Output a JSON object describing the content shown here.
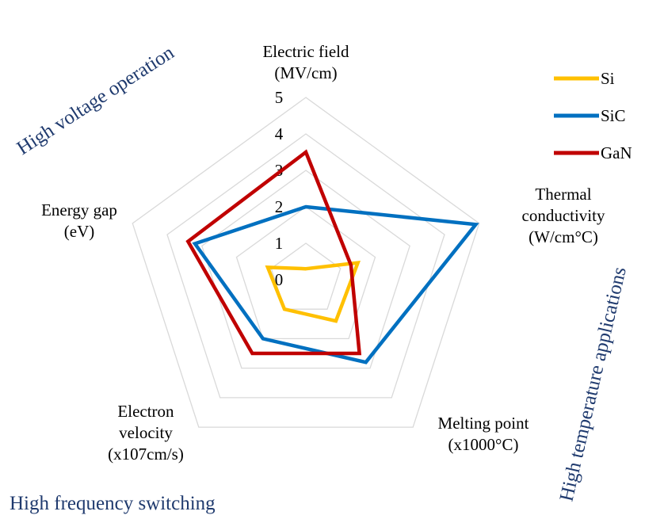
{
  "chart_data": {
    "type": "radar",
    "axes": [
      {
        "lines": [
          "Electric field",
          "(MV/cm)"
        ]
      },
      {
        "lines": [
          "Thermal",
          "conductivity",
          "(W/cm°C)"
        ]
      },
      {
        "lines": [
          "Melting point",
          "(x1000°C)"
        ]
      },
      {
        "lines": [
          "Electron",
          "velocity",
          "(x107cm/s)"
        ]
      },
      {
        "lines": [
          "Energy gap",
          "(eV)"
        ]
      }
    ],
    "rlim": [
      0,
      5
    ],
    "ticks": [
      "0",
      "1",
      "2",
      "3",
      "4",
      "5"
    ],
    "grid": true,
    "legend_position": "top-right",
    "series": [
      {
        "name": "Si",
        "color": "#ffc000",
        "values": [
          0.3,
          1.5,
          1.4,
          1.0,
          1.1
        ]
      },
      {
        "name": "SiC",
        "color": "#0070c0",
        "values": [
          2.0,
          4.9,
          2.8,
          2.0,
          3.2
        ]
      },
      {
        "name": "GaN",
        "color": "#c00000",
        "values": [
          3.5,
          1.3,
          2.5,
          2.5,
          3.4
        ]
      }
    ]
  },
  "annotations": {
    "high_voltage": "High voltage operation",
    "high_temperature": "High temperature applications",
    "high_frequency": "High frequency switching"
  }
}
